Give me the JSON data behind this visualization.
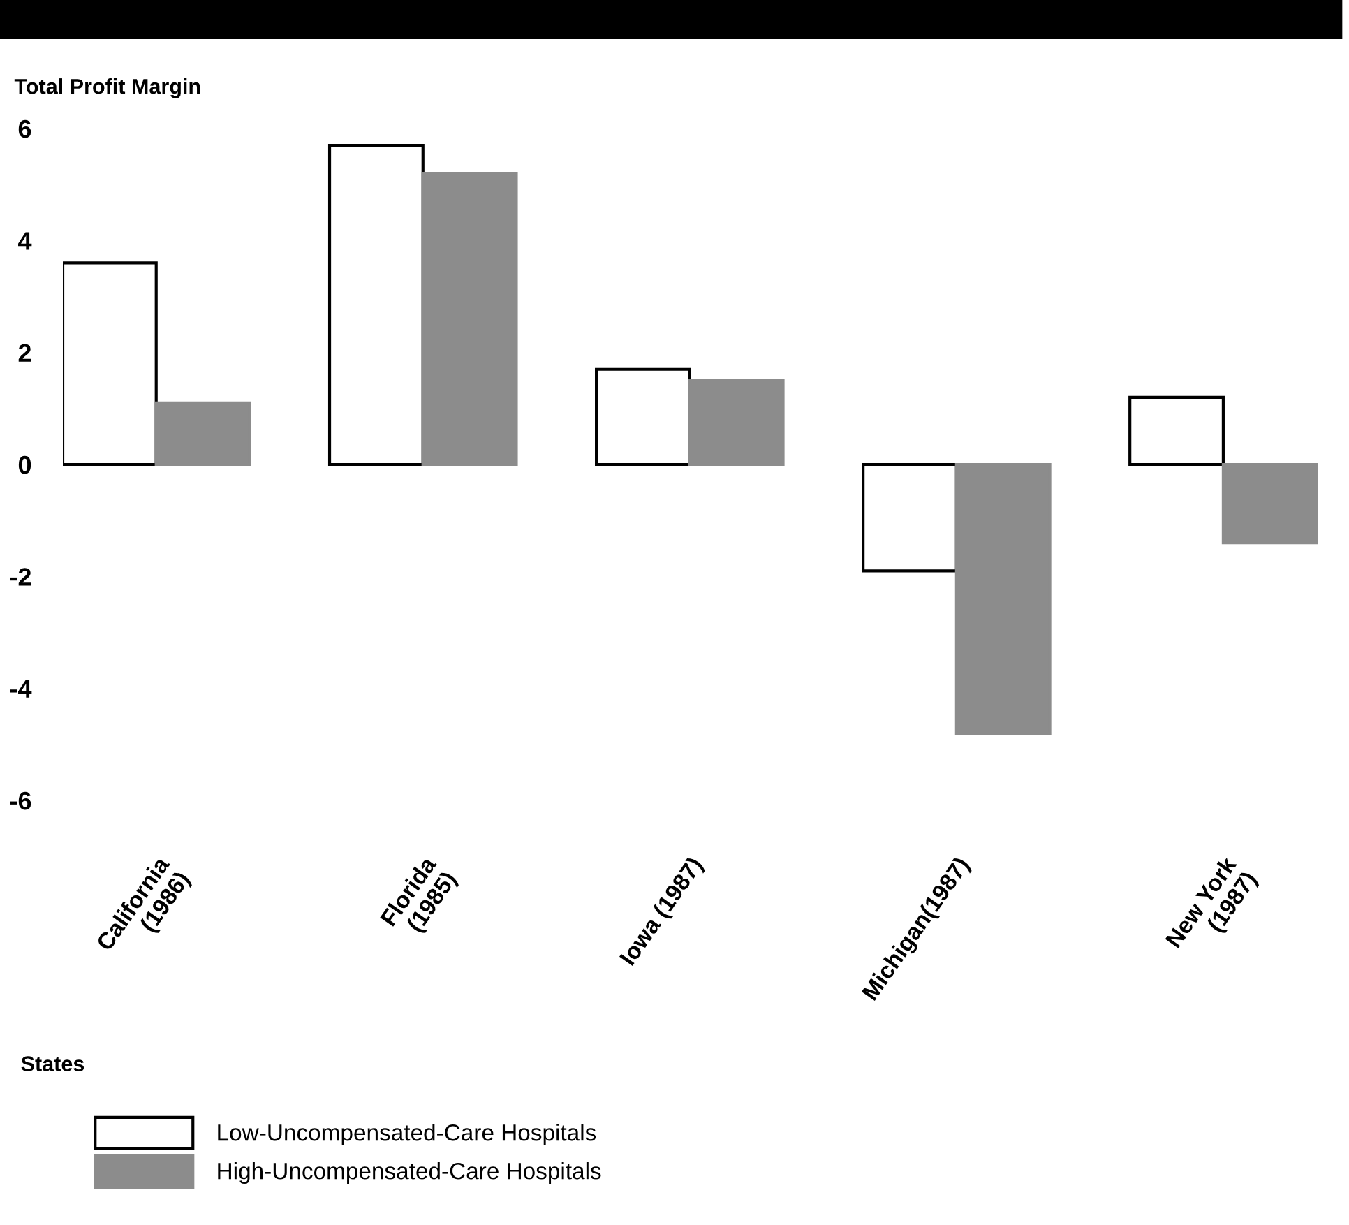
{
  "chart_data": {
    "type": "bar",
    "ylabel": "Total Profit Margin",
    "xlabel": "States",
    "categories": [
      "California\n(1986)",
      "Florida\n(1985)",
      "Iowa (1987)",
      "Michigan(1987)",
      "New York\n(1987)"
    ],
    "series": [
      {
        "name": "Low-Uncompensated-Care Hospitals",
        "color": "#ffffff",
        "values": [
          3.6,
          5.7,
          1.7,
          -1.9,
          1.2
        ]
      },
      {
        "name": "High-Uncompensated-Care Hospitals",
        "color": "#8c8c8c",
        "values": [
          1.1,
          5.2,
          1.5,
          -4.8,
          -1.4
        ]
      }
    ],
    "ylim": [
      -6,
      6
    ],
    "yticks": [
      -6,
      -4,
      -2,
      0,
      2,
      4,
      6
    ],
    "grid": false,
    "legend": "bottom left"
  }
}
